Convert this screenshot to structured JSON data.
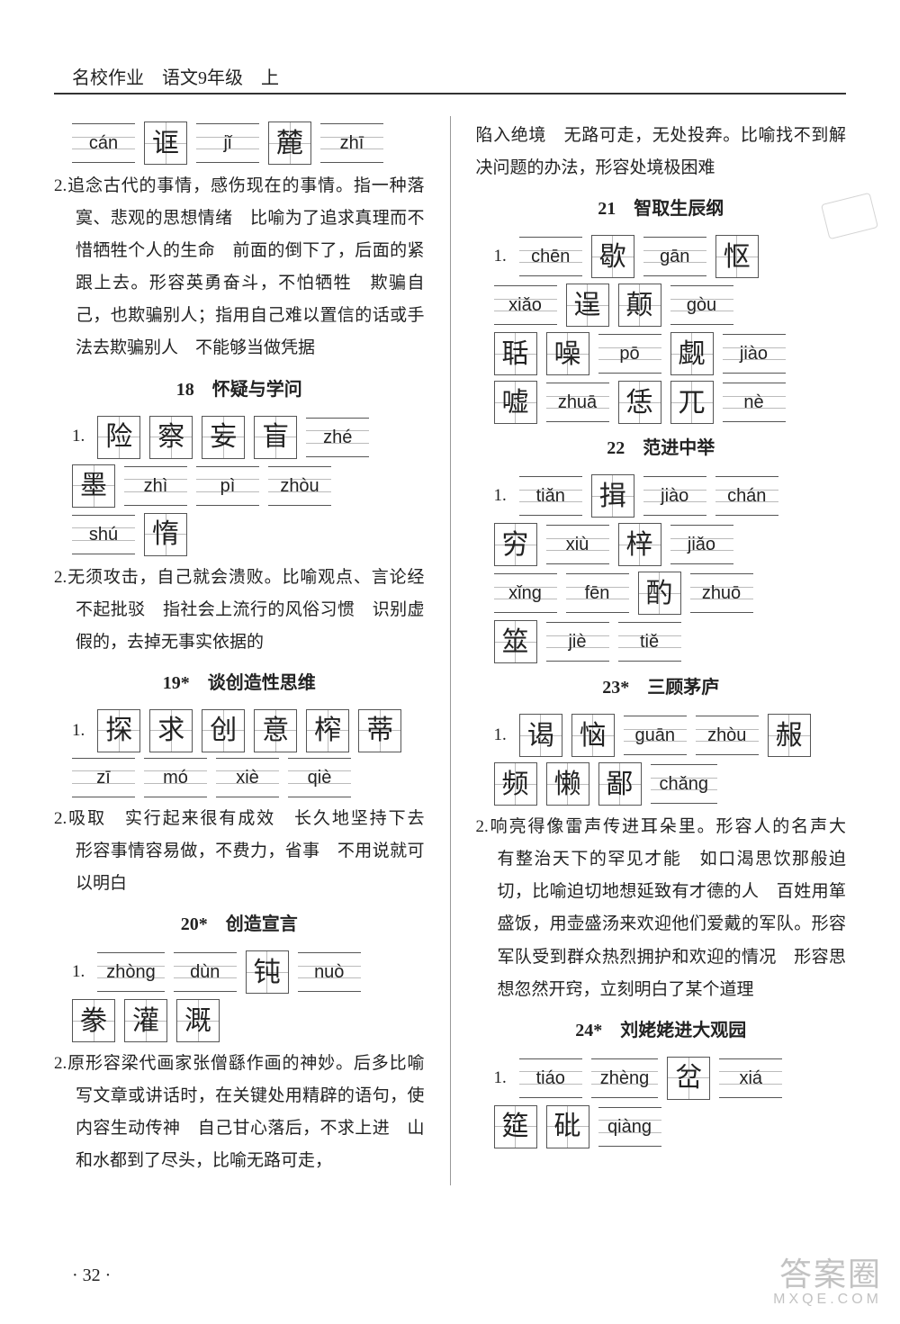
{
  "header": "名校作业　语文9年级　上",
  "page_number": "· 32 ·",
  "watermark_main": "答案圈",
  "watermark_sub": "MXQE.COM",
  "left": {
    "row_top": [
      {
        "t": "p",
        "v": "cán"
      },
      {
        "t": "c",
        "v": "诓"
      },
      {
        "t": "p",
        "v": "jǐ"
      },
      {
        "t": "c",
        "v": "麓"
      },
      {
        "t": "p",
        "v": "zhī"
      }
    ],
    "p1_label": "2.",
    "p1": "追念古代的事情，感伤现在的事情。指一种落寞、悲观的思想情绪　比喻为了追求真理而不惜牺牲个人的生命　前面的倒下了，后面的紧跟上去。形容英勇奋斗，不怕牺牲　欺骗自己，也欺骗别人；指用自己难以置信的话或手法去欺骗别人　不能够当做凭据",
    "s18_title": "18　怀疑与学问",
    "s18_r1": [
      {
        "t": "c",
        "v": "险"
      },
      {
        "t": "c",
        "v": "察"
      },
      {
        "t": "c",
        "v": "妄"
      },
      {
        "t": "c",
        "v": "盲"
      },
      {
        "t": "p",
        "v": "zhé"
      }
    ],
    "s18_r2": [
      {
        "t": "c",
        "v": "墨"
      },
      {
        "t": "p",
        "v": "zhì"
      },
      {
        "t": "p",
        "v": "pì"
      },
      {
        "t": "p",
        "v": "zhòu"
      }
    ],
    "s18_r3": [
      {
        "t": "p",
        "v": "shú"
      },
      {
        "t": "c",
        "v": "惰"
      }
    ],
    "s18_p_label": "2.",
    "s18_p": "无须攻击，自己就会溃败。比喻观点、言论经不起批驳　指社会上流行的风俗习惯　识别虚假的，去掉无事实依据的",
    "s19_title": "19*　谈创造性思维",
    "s19_r1": [
      {
        "t": "c",
        "v": "探"
      },
      {
        "t": "c",
        "v": "求"
      },
      {
        "t": "c",
        "v": "创"
      },
      {
        "t": "c",
        "v": "意"
      },
      {
        "t": "c",
        "v": "榨"
      },
      {
        "t": "c",
        "v": "蒂"
      }
    ],
    "s19_r2": [
      {
        "t": "p",
        "v": "zī"
      },
      {
        "t": "p",
        "v": "mó"
      },
      {
        "t": "p",
        "v": "xiè"
      },
      {
        "t": "p",
        "v": "qiè"
      }
    ],
    "s19_p_label": "2.",
    "s19_p": "吸取　实行起来很有成效　长久地坚持下去　形容事情容易做，不费力，省事　不用说就可以明白",
    "s20_title": "20*　创造宣言",
    "s20_r1": [
      {
        "t": "p",
        "v": "zhòng"
      },
      {
        "t": "p",
        "v": "dùn"
      },
      {
        "t": "c",
        "v": "钝"
      },
      {
        "t": "p",
        "v": "nuò"
      }
    ],
    "s20_r2": [
      {
        "t": "c",
        "v": "豢"
      },
      {
        "t": "c",
        "v": "灌"
      },
      {
        "t": "c",
        "v": "溉"
      }
    ],
    "s20_p_label": "2.",
    "s20_p": "原形容梁代画家张僧繇作画的神妙。后多比喻写文章或讲话时，在关键处用精辟的语句，使内容生动传神　自己甘心落后，不求上进　山和水都到了尽头，比喻无路可走，"
  },
  "right": {
    "top": "陷入绝境　无路可走，无处投奔。比喻找不到解决问题的办法，形容处境极困难",
    "s21_title": "21　智取生辰纲",
    "s21_r1": [
      {
        "t": "p",
        "v": "chēn"
      },
      {
        "t": "c",
        "v": "歇"
      },
      {
        "t": "p",
        "v": "gān"
      },
      {
        "t": "c",
        "v": "怄"
      }
    ],
    "s21_r2": [
      {
        "t": "p",
        "v": "xiǎo"
      },
      {
        "t": "c",
        "v": "逞"
      },
      {
        "t": "c",
        "v": "颠"
      },
      {
        "t": "p",
        "v": "gòu"
      }
    ],
    "s21_r3": [
      {
        "t": "c",
        "v": "聒"
      },
      {
        "t": "c",
        "v": "噪"
      },
      {
        "t": "p",
        "v": "pō"
      },
      {
        "t": "c",
        "v": "觑"
      },
      {
        "t": "p",
        "v": "jiào"
      }
    ],
    "s21_r4": [
      {
        "t": "c",
        "v": "嘘"
      },
      {
        "t": "p",
        "v": "zhuā"
      },
      {
        "t": "c",
        "v": "恁"
      },
      {
        "t": "c",
        "v": "兀"
      },
      {
        "t": "p",
        "v": "nè"
      }
    ],
    "s22_title": "22　范进中举",
    "s22_r1": [
      {
        "t": "p",
        "v": "tiǎn"
      },
      {
        "t": "c",
        "v": "揖"
      },
      {
        "t": "p",
        "v": "jiào"
      },
      {
        "t": "p",
        "v": "chán"
      }
    ],
    "s22_r2": [
      {
        "t": "c",
        "v": "穷"
      },
      {
        "t": "p",
        "v": "xiù"
      },
      {
        "t": "c",
        "v": "梓"
      },
      {
        "t": "p",
        "v": "jiǎo"
      }
    ],
    "s22_r3": [
      {
        "t": "p",
        "v": "xǐng"
      },
      {
        "t": "p",
        "v": "fēn"
      },
      {
        "t": "c",
        "v": "酌"
      },
      {
        "t": "p",
        "v": "zhuō"
      }
    ],
    "s22_r4": [
      {
        "t": "c",
        "v": "筮"
      },
      {
        "t": "p",
        "v": "jiè"
      },
      {
        "t": "p",
        "v": "tiě"
      }
    ],
    "s23_title": "23*　三顾茅庐",
    "s23_r1": [
      {
        "t": "c",
        "v": "谒"
      },
      {
        "t": "c",
        "v": "恼"
      },
      {
        "t": "p",
        "v": "guān"
      },
      {
        "t": "p",
        "v": "zhòu"
      },
      {
        "t": "c",
        "v": "赧"
      }
    ],
    "s23_r2": [
      {
        "t": "c",
        "v": "频"
      },
      {
        "t": "c",
        "v": "懒"
      },
      {
        "t": "c",
        "v": "鄙"
      },
      {
        "t": "p",
        "v": "chǎng"
      }
    ],
    "s23_p_label": "2.",
    "s23_p": "响亮得像雷声传进耳朵里。形容人的名声大　有整治天下的罕见才能　如口渴思饮那般迫切，比喻迫切地想延致有才德的人　百姓用箪盛饭，用壶盛汤来欢迎他们爱戴的军队。形容军队受到群众热烈拥护和欢迎的情况　形容思想忽然开窍，立刻明白了某个道理",
    "s24_title": "24*　刘姥姥进大观园",
    "s24_r1": [
      {
        "t": "p",
        "v": "tiáo"
      },
      {
        "t": "p",
        "v": "zhèng"
      },
      {
        "t": "c",
        "v": "岔"
      },
      {
        "t": "p",
        "v": "xiá"
      }
    ],
    "s24_r2": [
      {
        "t": "c",
        "v": "筵"
      },
      {
        "t": "c",
        "v": "砒"
      },
      {
        "t": "p",
        "v": "qiàng"
      }
    ]
  }
}
